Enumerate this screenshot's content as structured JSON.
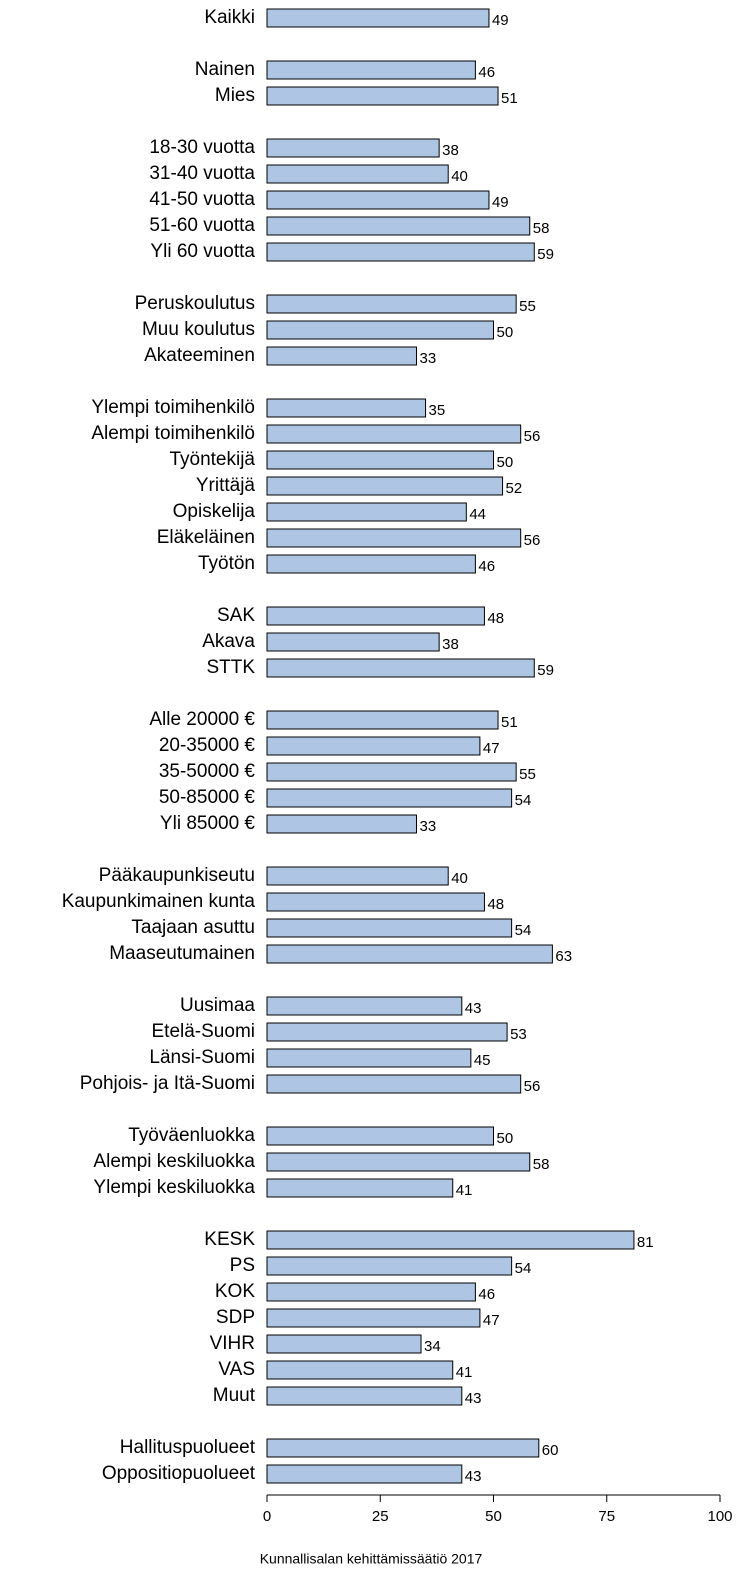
{
  "chart_data": {
    "type": "bar",
    "orientation": "horizontal",
    "categories": [
      "Kaikki",
      null,
      "Nainen",
      "Mies",
      null,
      "18-30 vuotta",
      "31-40 vuotta",
      "41-50 vuotta",
      "51-60 vuotta",
      "Yli 60 vuotta",
      null,
      "Peruskoulutus",
      "Muu koulutus",
      "Akateeminen",
      null,
      "Ylempi toimihenkilö",
      "Alempi toimihenkilö",
      "Työntekijä",
      "Yrittäjä",
      "Opiskelija",
      "Eläkeläinen",
      "Työtön",
      null,
      "SAK",
      "Akava",
      "STTK",
      null,
      "Alle 20000 €",
      "20-35000 €",
      "35-50000 €",
      "50-85000 €",
      "Yli 85000 €",
      null,
      "Pääkaupunkiseutu",
      "Kaupunkimainen kunta",
      "Taajaan asuttu",
      "Maaseutumainen",
      null,
      "Uusimaa",
      "Etelä-Suomi",
      "Länsi-Suomi",
      "Pohjois- ja Itä-Suomi",
      null,
      "Työväenluokka",
      "Alempi keskiluokka",
      "Ylempi keskiluokka",
      null,
      "KESK",
      "PS",
      "KOK",
      "SDP",
      "VIHR",
      "VAS",
      "Muut",
      null,
      "Hallituspuolueet",
      "Oppositiopuolueet"
    ],
    "values": [
      49,
      null,
      46,
      51,
      null,
      38,
      40,
      49,
      58,
      59,
      null,
      55,
      50,
      33,
      null,
      35,
      56,
      50,
      52,
      44,
      56,
      46,
      null,
      48,
      38,
      59,
      null,
      51,
      47,
      55,
      54,
      33,
      null,
      40,
      48,
      54,
      63,
      null,
      43,
      53,
      45,
      56,
      null,
      50,
      58,
      41,
      null,
      81,
      54,
      46,
      47,
      34,
      41,
      43,
      null,
      60,
      43
    ],
    "color": "#aec6e4",
    "xlim": [
      0,
      100
    ],
    "xticks": [
      0,
      25,
      50,
      75,
      100
    ],
    "source": "Kunnallisalan kehittämissäätiö 2017"
  }
}
